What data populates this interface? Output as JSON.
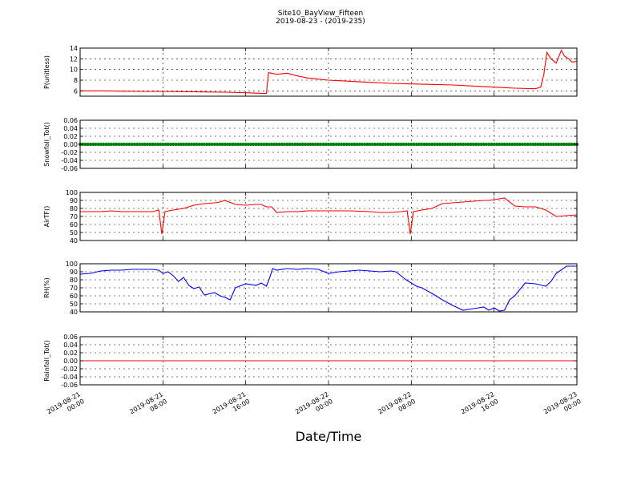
{
  "figure": {
    "title_line1": "Site10_BayView_Fifteen",
    "title_line2": "2019-08-23 - (2019-235)",
    "xlabel": "Date/Time"
  },
  "x_axis": {
    "start": "2019-08-21 00:00",
    "end": "2019-08-23 00:00",
    "tick_hours": [
      0,
      8,
      16,
      24,
      32,
      40,
      48
    ],
    "tick_labels": [
      [
        "2019-08-21",
        "00:00"
      ],
      [
        "2019-08-21",
        "08:00"
      ],
      [
        "2019-08-21",
        "16:00"
      ],
      [
        "2019-08-22",
        "00:00"
      ],
      [
        "2019-08-22",
        "08:00"
      ],
      [
        "2019-08-22",
        "16:00"
      ],
      [
        "2019-08-23",
        "00:00"
      ]
    ]
  },
  "chart_data": [
    {
      "type": "line",
      "ylabel": "P(unitless)",
      "ylim": [
        5,
        14
      ],
      "yticks": [
        6,
        8,
        10,
        12,
        14
      ],
      "yticklabels": [
        "6",
        "8",
        "10",
        "12",
        "14"
      ],
      "color": "#ff0000",
      "grid": true,
      "series": [
        {
          "x": [
            0,
            2,
            4,
            6,
            8,
            10,
            12,
            14,
            16,
            18,
            18.2,
            18.5,
            19,
            20,
            21,
            22,
            23,
            24,
            26,
            28,
            30,
            32,
            34,
            36,
            38,
            40,
            42,
            44,
            44.5,
            44.8,
            45.1,
            45.5,
            46,
            46.5,
            46.8,
            47.2,
            47.5,
            48
          ],
          "y": [
            6.0,
            6.0,
            5.95,
            5.9,
            5.9,
            5.85,
            5.8,
            5.75,
            5.65,
            5.5,
            9.4,
            9.3,
            9.1,
            9.3,
            8.8,
            8.4,
            8.2,
            8.0,
            7.8,
            7.6,
            7.4,
            7.3,
            7.2,
            7.1,
            6.9,
            6.7,
            6.5,
            6.4,
            6.7,
            9.0,
            13.2,
            12.0,
            11.2,
            13.6,
            12.5,
            12.0,
            11.4,
            11.5
          ]
        }
      ]
    },
    {
      "type": "scatter",
      "ylabel": "Snowfall_Tot()",
      "ylim": [
        -0.06,
        0.06
      ],
      "yticks": [
        -0.06,
        -0.04,
        -0.02,
        0.0,
        0.02,
        0.04,
        0.06
      ],
      "yticklabels": [
        "-0.06",
        "-0.04",
        "-0.02",
        "0.00",
        "0.02",
        "0.04",
        "0.06"
      ],
      "color": "#008000",
      "grid": true,
      "series": [
        {
          "x_range": [
            0,
            48
          ],
          "step_hours": 0.25,
          "y": 0
        }
      ]
    },
    {
      "type": "line",
      "ylabel": "AirTF()",
      "ylim": [
        40,
        100
      ],
      "yticks": [
        40,
        50,
        60,
        70,
        80,
        90,
        100
      ],
      "yticklabels": [
        "40",
        "50",
        "60",
        "70",
        "80",
        "90",
        "100"
      ],
      "color": "#ff0000",
      "grid": true,
      "series": [
        {
          "x": [
            0,
            1,
            2,
            3,
            4,
            5,
            6,
            7,
            7.6,
            7.9,
            8.2,
            9,
            10,
            11,
            12,
            13,
            13.5,
            14,
            15,
            16,
            17,
            17.5,
            18,
            18.5,
            19,
            20,
            21,
            22,
            23,
            24,
            26,
            28,
            29,
            30,
            31,
            31.6,
            31.9,
            32.2,
            33,
            34,
            35,
            36,
            37,
            38,
            39,
            39.5,
            40,
            40.5,
            41,
            42,
            43,
            44,
            44.5,
            45,
            46,
            47,
            48
          ],
          "y": [
            76,
            76,
            76,
            77,
            76,
            76,
            76,
            76,
            78,
            48,
            76,
            78,
            80,
            84,
            86,
            87,
            88,
            90,
            85,
            84,
            85,
            85,
            82,
            82,
            75,
            76,
            76,
            77,
            77,
            77,
            77,
            76,
            75,
            75,
            76,
            77,
            48,
            76,
            78,
            80,
            86,
            87,
            88,
            89,
            90,
            90,
            91,
            92,
            93,
            83,
            82,
            82,
            80,
            78,
            70,
            71,
            72
          ]
        }
      ]
    },
    {
      "type": "line",
      "ylabel": "RH(%)",
      "ylim": [
        40,
        100
      ],
      "yticks": [
        40,
        50,
        60,
        70,
        80,
        90,
        100
      ],
      "yticklabels": [
        "40",
        "50",
        "60",
        "70",
        "80",
        "90",
        "100"
      ],
      "color": "#0000ff",
      "grid": true,
      "series": [
        {
          "x": [
            0,
            1,
            2,
            3,
            4,
            5,
            6,
            7,
            7.6,
            8,
            8.5,
            9,
            9.5,
            10,
            10.5,
            11,
            11.5,
            12,
            13,
            13.5,
            14,
            14.5,
            15,
            16,
            17,
            17.5,
            18,
            18.3,
            18.6,
            19,
            20,
            21,
            22,
            23,
            24,
            25,
            26,
            27,
            28,
            29,
            30,
            30.5,
            31,
            31.5,
            32,
            32.5,
            33,
            34,
            35,
            36,
            37,
            38,
            39,
            39.5,
            40,
            40.5,
            41,
            41.5,
            42,
            43,
            44,
            45,
            45.5,
            46,
            47,
            48
          ],
          "y": [
            87,
            88,
            91,
            92,
            92,
            93,
            93,
            93,
            92,
            88,
            90,
            85,
            78,
            83,
            73,
            69,
            71,
            61,
            64,
            60,
            58,
            55,
            70,
            75,
            73,
            76,
            72,
            82,
            94,
            92,
            94,
            93,
            94,
            93,
            88,
            90,
            91,
            92,
            91,
            90,
            91,
            90,
            85,
            80,
            76,
            72,
            70,
            63,
            55,
            48,
            42,
            44,
            46,
            42,
            45,
            41,
            42,
            55,
            60,
            76,
            75,
            72,
            78,
            88,
            97,
            97
          ]
        }
      ]
    },
    {
      "type": "line",
      "ylabel": "Rainfall_Tot()",
      "ylim": [
        -0.06,
        0.06
      ],
      "yticks": [
        -0.06,
        -0.04,
        -0.02,
        0.0,
        0.02,
        0.04,
        0.06
      ],
      "yticklabels": [
        "-0.06",
        "-0.04",
        "-0.02",
        "0.00",
        "0.02",
        "0.04",
        "0.06"
      ],
      "color": "#ff0000",
      "grid": true,
      "series": [
        {
          "x": [
            0,
            48
          ],
          "y": [
            0,
            0
          ]
        }
      ]
    }
  ]
}
